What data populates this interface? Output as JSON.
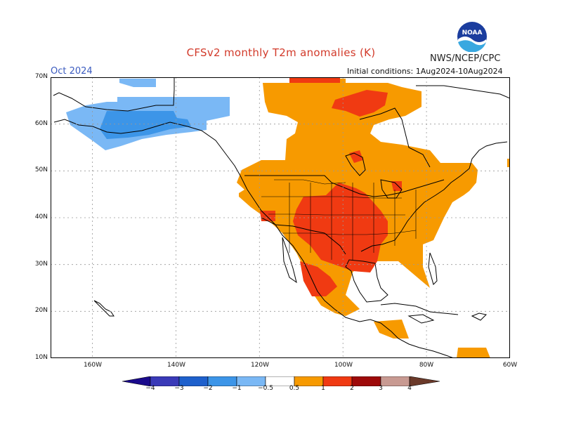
{
  "header": {
    "title": "CFSv2 monthly T2m anomalies (K)",
    "agency": "NWS/NCEP/CPC",
    "month": "Oct 2024",
    "initial_conditions": "Initial conditions: 1Aug2024-10Aug2024",
    "logo_text": "NOAA"
  },
  "map": {
    "lon_range": [
      -170,
      -60
    ],
    "lat_range": [
      10,
      70
    ],
    "lat_labels": [
      "70N",
      "60N",
      "50N",
      "40N",
      "30N",
      "20N",
      "10N"
    ],
    "lon_labels": [
      "160W",
      "140W",
      "120W",
      "100W",
      "80W",
      "60W"
    ],
    "ocean_color": "#ffffff",
    "grid": "dotted"
  },
  "colorbar": {
    "labels": [
      "−4",
      "−3",
      "−2",
      "−1",
      "−0.5",
      "0.5",
      "1",
      "2",
      "3",
      "4"
    ],
    "colors": [
      "#1a0a8c",
      "#3a3ab8",
      "#1e60cc",
      "#3c95e8",
      "#7ab8f5",
      "#ffffff",
      "#f79a00",
      "#f03a12",
      "#9e0a0a",
      "#c89a92",
      "#6b3a2a"
    ]
  }
}
